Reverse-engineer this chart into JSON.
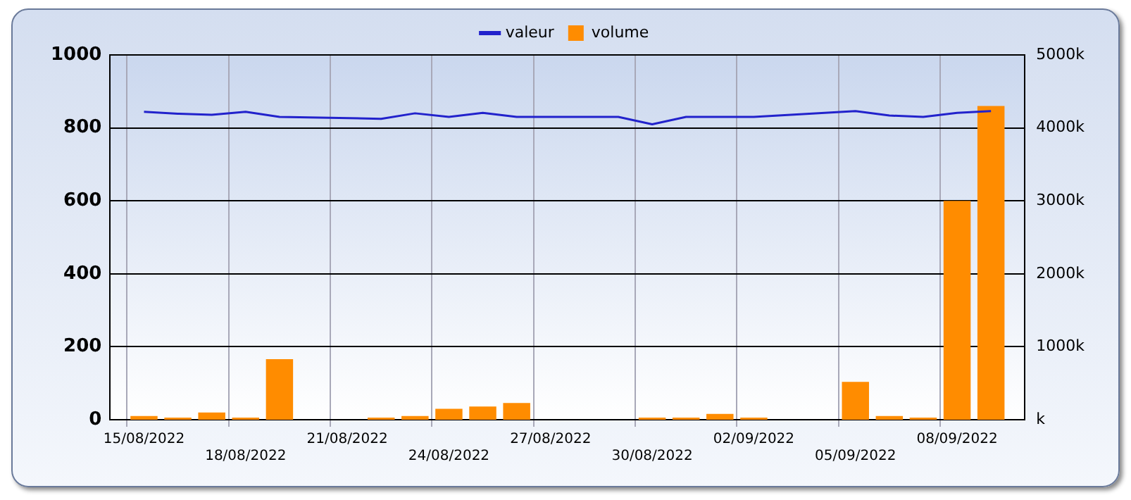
{
  "chart_data": {
    "type": "bar",
    "categories": [
      null,
      "15/08/2022",
      null,
      null,
      "18/08/2022",
      null,
      null,
      "21/08/2022",
      null,
      null,
      "24/08/2022",
      null,
      null,
      "27/08/2022",
      null,
      null,
      "30/08/2022",
      null,
      null,
      "02/09/2022",
      null,
      null,
      "05/09/2022",
      null,
      null,
      "08/09/2022",
      null,
      null
    ],
    "series": [
      {
        "name": "valeur",
        "type": "line",
        "color": "#2222cc",
        "values": [
          null,
          844,
          839,
          836,
          844,
          830,
          null,
          null,
          825,
          840,
          830,
          841,
          830,
          null,
          null,
          830,
          810,
          830,
          830,
          830,
          null,
          null,
          846,
          834,
          830,
          841,
          846,
          null
        ]
      },
      {
        "name": "volume",
        "axis": "y2",
        "color": "#ff8c00",
        "values": [
          null,
          50,
          30,
          100,
          30,
          830,
          null,
          null,
          30,
          50,
          150,
          180,
          230,
          null,
          null,
          null,
          30,
          30,
          80,
          30,
          null,
          null,
          520,
          50,
          30,
          3000,
          4300,
          null
        ]
      }
    ],
    "ylim": [
      0,
      1000
    ],
    "yticks": [
      0,
      200,
      400,
      600,
      800,
      1000
    ],
    "y2lim": [
      0,
      5000
    ],
    "y2ticks": [
      {
        "value": 0,
        "label": "k"
      },
      {
        "value": 1000,
        "label": "1000k"
      },
      {
        "value": 2000,
        "label": "2000k"
      },
      {
        "value": 3000,
        "label": "3000k"
      },
      {
        "value": 4000,
        "label": "4000k"
      },
      {
        "value": 5000,
        "label": "5000k"
      }
    ],
    "grid": true,
    "legend": "top",
    "marker": "none",
    "line_style": "solid"
  }
}
